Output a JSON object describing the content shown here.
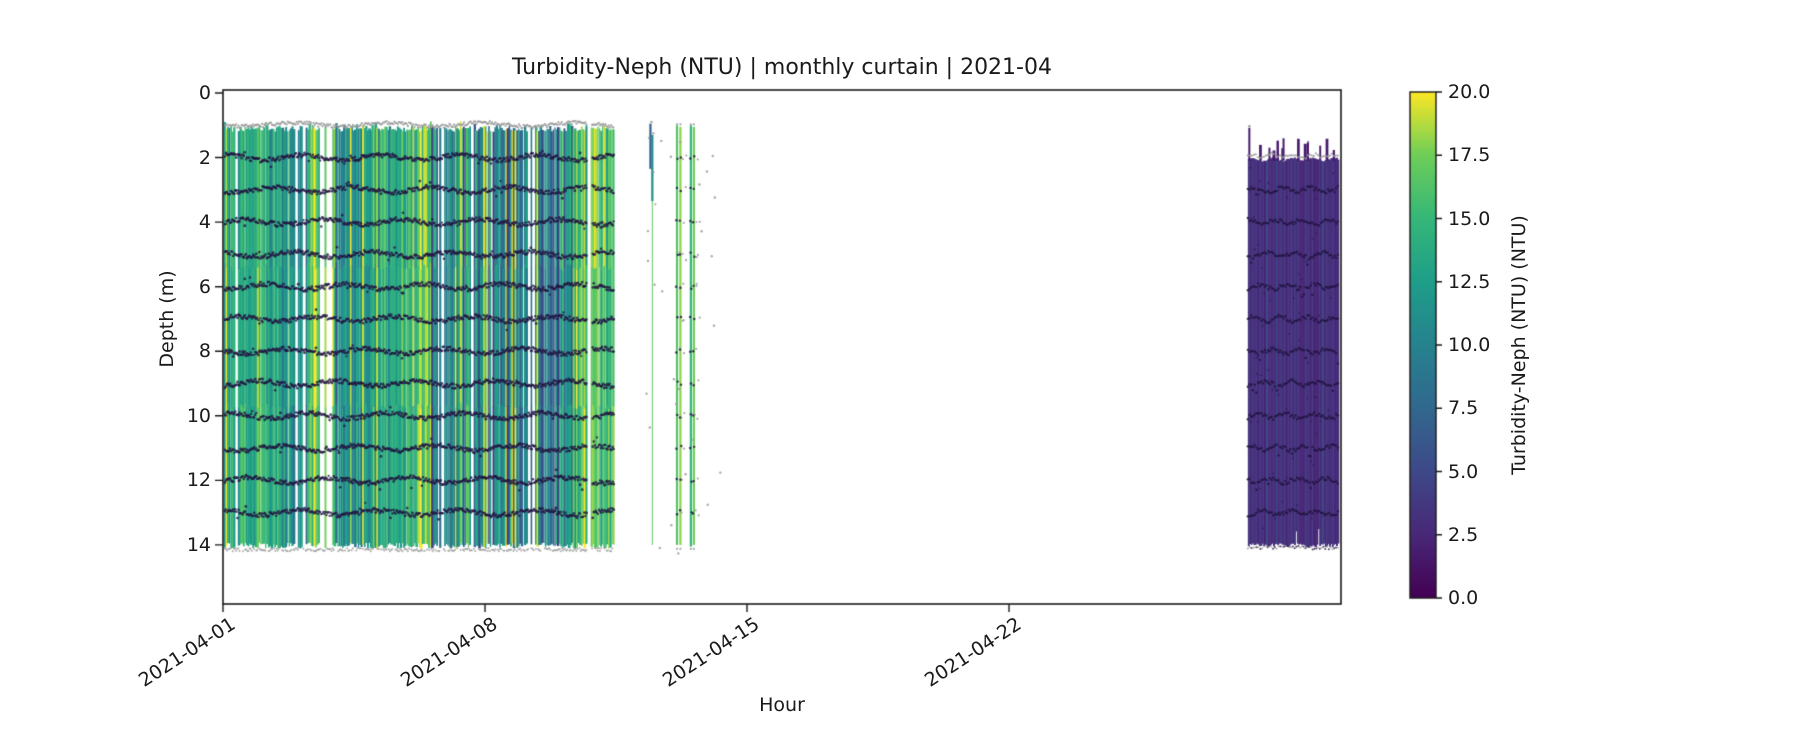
{
  "chart_data": {
    "type": "heatmap",
    "variant": "monthly curtain (vertical profile casts over time)",
    "title": "Turbidity-Neph (NTU) | monthly curtain | 2021-04",
    "xlabel": "Hour",
    "ylabel": "Depth (m)",
    "month": "2021-04",
    "x_tick_labels": [
      "2021-04-01",
      "2021-04-08",
      "2021-04-15",
      "2021-04-22"
    ],
    "x_tick_days": [
      0,
      7,
      14,
      21
    ],
    "x_range_days": [
      0,
      29.87
    ],
    "y_tick_values": [
      0,
      2,
      4,
      6,
      8,
      10,
      12,
      14
    ],
    "grid": false,
    "legend": "colorbar-right",
    "colorbar": {
      "label": "Turbidity-Neph (NTU) (NTU)",
      "vmin": 0.0,
      "vmax": 20.0,
      "tick_labels": [
        "0.0",
        "2.5",
        "5.0",
        "7.5",
        "10.0",
        "12.5",
        "15.0",
        "17.5",
        "20.0"
      ],
      "tick_values": [
        0,
        2.5,
        5,
        7.5,
        10,
        12.5,
        15,
        17.5,
        20
      ],
      "colormap": "viridis",
      "viridis_anchors": [
        [
          0.0,
          "#440154"
        ],
        [
          0.125,
          "#482878"
        ],
        [
          0.25,
          "#3e4989"
        ],
        [
          0.375,
          "#31688e"
        ],
        [
          0.5,
          "#26828e"
        ],
        [
          0.625,
          "#1f9e89"
        ],
        [
          0.75,
          "#35b779"
        ],
        [
          0.875,
          "#6ece58"
        ],
        [
          1.0,
          "#fde725"
        ]
      ]
    },
    "series": {
      "dense_period": {
        "start_day": 0.05,
        "end_day": 9.73,
        "cast_interval_days": 0.042,
        "depth_top_m": 1.0,
        "depth_bottom_m": 14.0,
        "value_noise_ntu": 3,
        "gap_count": 13,
        "mean_value_segments_day_day_ntu": [
          [
            0.0,
            0.6,
            13.5
          ],
          [
            0.6,
            1.3,
            15.0
          ],
          [
            1.3,
            2.3,
            12.5
          ],
          [
            2.3,
            3.0,
            16.0
          ],
          [
            3.0,
            3.9,
            10.5
          ],
          [
            3.9,
            4.8,
            14.0
          ],
          [
            4.8,
            5.6,
            15.5
          ],
          [
            5.6,
            6.3,
            11.0
          ],
          [
            6.3,
            7.2,
            12.5
          ],
          [
            7.2,
            7.9,
            10.0
          ],
          [
            7.9,
            8.9,
            9.5
          ],
          [
            8.9,
            9.73,
            14.5
          ]
        ]
      },
      "cluster_period": {
        "start_day": 9.85,
        "end_day": 10.45,
        "mean_value_ntu": 16.5,
        "value_noise_ntu": 2.5
      },
      "isolated_casts": [
        {
          "day": 11.42,
          "depth_top_m": 0.95,
          "depth_bottom_m": 2.35,
          "value_ntu": 7.0
        },
        {
          "day": 11.47,
          "depth_top_m": 1.3,
          "depth_bottom_m": 3.35,
          "value_ntu": 11.0,
          "thin_tail_to_m": 14.0,
          "tail_value_ntu": 17.0
        },
        {
          "day": 12.13,
          "depth_top_m": 1.0,
          "depth_bottom_m": 14.0,
          "value_ntu": 16.5
        },
        {
          "day": 12.22,
          "depth_top_m": 1.05,
          "depth_bottom_m": 14.0,
          "value_ntu": 18.0
        },
        {
          "day": 12.5,
          "depth_top_m": 1.0,
          "depth_bottom_m": 14.05,
          "value_ntu": 15.0
        },
        {
          "day": 12.58,
          "depth_top_m": 1.05,
          "depth_bottom_m": 14.0,
          "value_ntu": 17.5
        }
      ],
      "scattered_gray_markers": {
        "count": 28,
        "day_range": [
          11.3,
          13.3
        ],
        "depth_range_m": [
          1.0,
          14.3
        ]
      },
      "block_period": {
        "start_day": 27.38,
        "end_day": 29.79,
        "depth_top_m": 2.03,
        "depth_bottom_m": 14.0,
        "value_range_ntu": [
          2.2,
          3.8
        ],
        "spike_count": 13,
        "tall_spike_top_m": 1.08
      },
      "marker_depth_rows_m": [
        2,
        3,
        4,
        5,
        6,
        7,
        8,
        9,
        10,
        11,
        12,
        13
      ],
      "marker_colors": {
        "dark": "#221441",
        "gray": "#9a9a9a"
      }
    }
  },
  "layout_colors": {
    "background": "#ffffff",
    "axis": "#1a1a1a",
    "text": "#1a1a1a"
  }
}
